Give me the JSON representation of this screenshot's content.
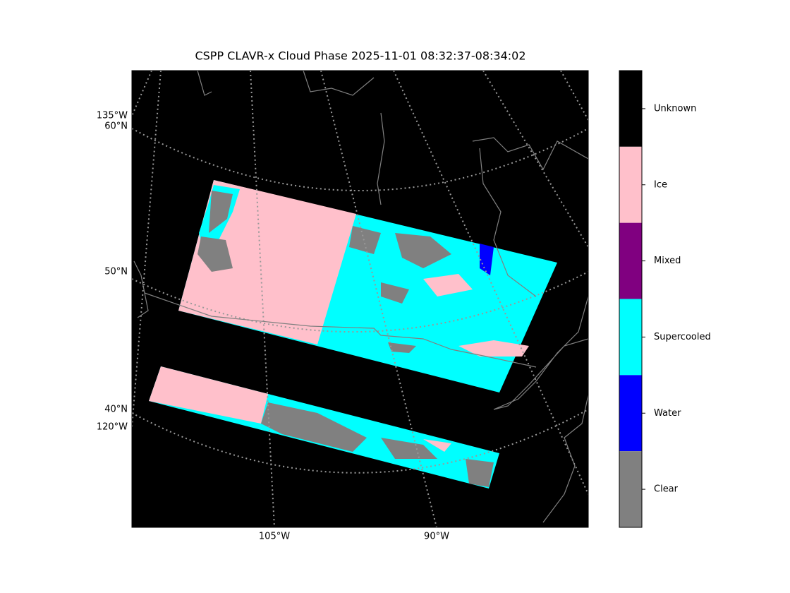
{
  "title": "CSPP CLAVR-x Cloud Phase 2025-11-01 08:32:37-08:34:02",
  "left_labels": [
    "135°W",
    "60°N",
    "50°N",
    "40°N",
    "120°W"
  ],
  "bottom_labels": [
    "105°W",
    "90°W"
  ],
  "colorbar": {
    "categories": [
      {
        "label": "Unknown",
        "color": "#000000"
      },
      {
        "label": "Ice",
        "color": "#ffc0cb"
      },
      {
        "label": "Mixed",
        "color": "#800080"
      },
      {
        "label": "Supercooled",
        "color": "#00ffff"
      },
      {
        "label": "Water",
        "color": "#0000ff"
      },
      {
        "label": "Clear",
        "color": "#808080"
      }
    ]
  }
}
